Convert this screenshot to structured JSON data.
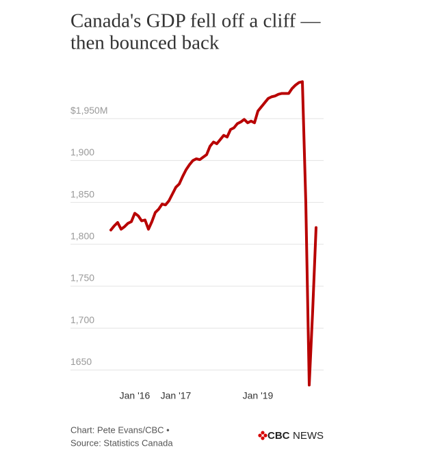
{
  "chart_data": {
    "type": "line",
    "title": [
      "Canada's GDP fell off a cliff —",
      "then bounced back"
    ],
    "x": [
      "2015-06",
      "2015-07",
      "2015-08",
      "2015-09",
      "2015-10",
      "2015-11",
      "2015-12",
      "2016-01",
      "2016-02",
      "2016-03",
      "2016-04",
      "2016-05",
      "2016-06",
      "2016-07",
      "2016-08",
      "2016-09",
      "2016-10",
      "2016-11",
      "2016-12",
      "2017-01",
      "2017-02",
      "2017-03",
      "2017-04",
      "2017-05",
      "2017-06",
      "2017-07",
      "2017-08",
      "2017-09",
      "2017-10",
      "2017-11",
      "2017-12",
      "2018-01",
      "2018-02",
      "2018-03",
      "2018-04",
      "2018-05",
      "2018-06",
      "2018-07",
      "2018-08",
      "2018-09",
      "2018-10",
      "2018-11",
      "2018-12",
      "2019-01",
      "2019-02",
      "2019-03",
      "2019-04",
      "2019-05",
      "2019-06",
      "2019-07",
      "2019-08",
      "2019-09",
      "2019-10",
      "2019-11",
      "2019-12",
      "2020-01",
      "2020-02",
      "2020-03",
      "2020-04",
      "2020-05",
      "2020-06"
    ],
    "series": [
      {
        "name": "GDP",
        "color": "#b80000",
        "values": [
          1817,
          1822,
          1826,
          1818,
          1821,
          1825,
          1827,
          1837,
          1834,
          1828,
          1829,
          1818,
          1827,
          1838,
          1842,
          1848,
          1847,
          1852,
          1860,
          1868,
          1872,
          1881,
          1889,
          1895,
          1900,
          1902,
          1901,
          1904,
          1907,
          1917,
          1922,
          1920,
          1925,
          1930,
          1928,
          1937,
          1939,
          1944,
          1946,
          1949,
          1945,
          1947,
          1945,
          1959,
          1964,
          1969,
          1974,
          1976,
          1977,
          1979,
          1980,
          1980,
          1980,
          1986,
          1990,
          1993,
          1994,
          1850,
          1632,
          1720,
          1820
        ]
      }
    ],
    "xlim": [
      "2015-06",
      "2020-06"
    ],
    "xticks": [
      {
        "value": "2016-01",
        "label": "Jan '16"
      },
      {
        "value": "2017-01",
        "label": "Jan '17"
      },
      {
        "value": "2019-01",
        "label": "Jan '19"
      }
    ],
    "ylim": [
      1625,
      2000
    ],
    "yticks": [
      1650,
      {
        "value": 1700,
        "label": "1,700"
      },
      {
        "value": 1750,
        "label": "1,750"
      },
      {
        "value": 1800,
        "label": "1,800"
      },
      {
        "value": 1850,
        "label": "1,850"
      },
      {
        "value": 1900,
        "label": "1,900"
      },
      {
        "value": 1950,
        "label": "$1,950M"
      }
    ],
    "grid": true,
    "credit": "Chart: Pete Evans/CBC •",
    "source": "Source: Statistics Canada",
    "brand": [
      "CBC",
      "NEWS"
    ]
  }
}
